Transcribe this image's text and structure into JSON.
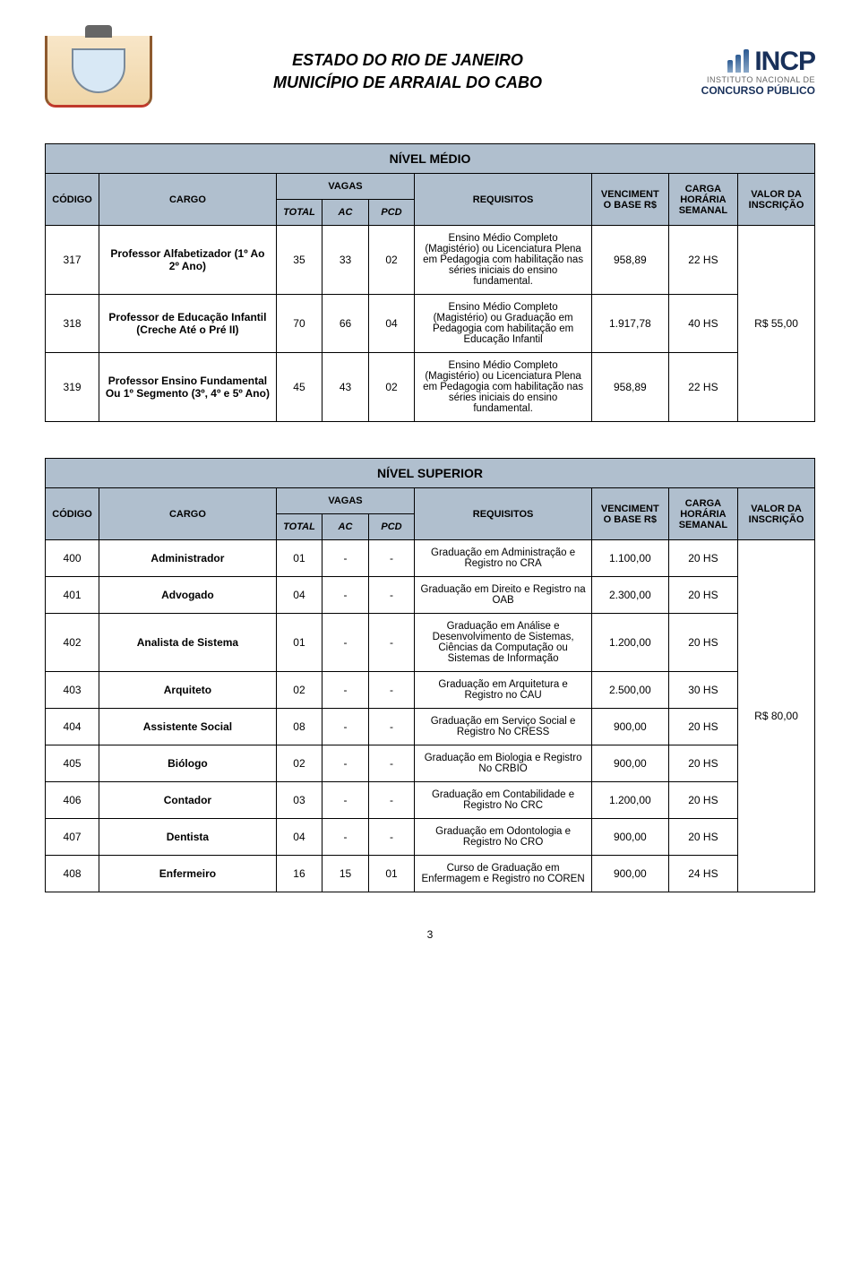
{
  "header": {
    "line1": "ESTADO DO RIO DE JANEIRO",
    "line2": "MUNICÍPIO DE ARRAIAL DO CABO",
    "logo_brand": "INCP",
    "logo_sub1": "INSTITUTO NACIONAL DE",
    "logo_sub2": "CONCURSO PÚBLICO"
  },
  "colors": {
    "header_bg": "#b0bfce",
    "border": "#000000",
    "text": "#000000",
    "logo_primary": "#18305a"
  },
  "col_labels": {
    "codigo": "CÓDIGO",
    "cargo": "CARGO",
    "vagas": "VAGAS",
    "total": "TOTAL",
    "ac": "AC",
    "pcd": "PCD",
    "requisitos": "REQUISITOS",
    "vencimento": "VENCIMENTO BASE R$",
    "carga": "CARGA HORÁRIA SEMANAL",
    "valor": "VALOR DA INSCRIÇÃO"
  },
  "table1": {
    "title": "NÍVEL MÉDIO",
    "valor_inscricao": "R$ 55,00",
    "rows": [
      {
        "codigo": "317",
        "cargo": "Professor Alfabetizador (1º Ao 2º Ano)",
        "total": "35",
        "ac": "33",
        "pcd": "02",
        "requisitos": "Ensino Médio Completo (Magistério) ou Licenciatura Plena em Pedagogia com habilitação nas séries iniciais do ensino fundamental.",
        "vencimento": "958,89",
        "carga": "22 HS"
      },
      {
        "codigo": "318",
        "cargo": "Professor de Educação Infantil (Creche Até o Pré II)",
        "total": "70",
        "ac": "66",
        "pcd": "04",
        "requisitos": "Ensino Médio Completo (Magistério) ou Graduação em Pedagogia com habilitação em Educação Infantil",
        "vencimento": "1.917,78",
        "carga": "40 HS"
      },
      {
        "codigo": "319",
        "cargo": "Professor Ensino Fundamental Ou 1º Segmento (3º, 4º e 5º Ano)",
        "total": "45",
        "ac": "43",
        "pcd": "02",
        "requisitos": "Ensino Médio Completo (Magistério) ou Licenciatura Plena em Pedagogia com habilitação nas séries iniciais do ensino fundamental.",
        "vencimento": "958,89",
        "carga": "22 HS"
      }
    ]
  },
  "table2": {
    "title": "NÍVEL SUPERIOR",
    "valor_inscricao": "R$ 80,00",
    "rows": [
      {
        "codigo": "400",
        "cargo": "Administrador",
        "total": "01",
        "ac": "-",
        "pcd": "-",
        "requisitos": "Graduação em Administração e Registro no CRA",
        "vencimento": "1.100,00",
        "carga": "20 HS"
      },
      {
        "codigo": "401",
        "cargo": "Advogado",
        "total": "04",
        "ac": "-",
        "pcd": "-",
        "requisitos": "Graduação em Direito e Registro na OAB",
        "vencimento": "2.300,00",
        "carga": "20 HS"
      },
      {
        "codigo": "402",
        "cargo": "Analista de Sistema",
        "total": "01",
        "ac": "-",
        "pcd": "-",
        "requisitos": "Graduação em Análise e Desenvolvimento de Sistemas, Ciências da Computação ou Sistemas de Informação",
        "vencimento": "1.200,00",
        "carga": "20 HS"
      },
      {
        "codigo": "403",
        "cargo": "Arquiteto",
        "total": "02",
        "ac": "-",
        "pcd": "-",
        "requisitos": "Graduação em Arquitetura e Registro no CAU",
        "vencimento": "2.500,00",
        "carga": "30 HS"
      },
      {
        "codigo": "404",
        "cargo": "Assistente Social",
        "total": "08",
        "ac": "-",
        "pcd": "-",
        "requisitos": "Graduação em Serviço Social e Registro No CRESS",
        "vencimento": "900,00",
        "carga": "20 HS"
      },
      {
        "codigo": "405",
        "cargo": "Biólogo",
        "total": "02",
        "ac": "-",
        "pcd": "-",
        "requisitos": "Graduação em Biologia e Registro No CRBIO",
        "vencimento": "900,00",
        "carga": "20 HS"
      },
      {
        "codigo": "406",
        "cargo": "Contador",
        "total": "03",
        "ac": "-",
        "pcd": "-",
        "requisitos": "Graduação em Contabilidade e Registro No CRC",
        "vencimento": "1.200,00",
        "carga": "20 HS"
      },
      {
        "codigo": "407",
        "cargo": "Dentista",
        "total": "04",
        "ac": "-",
        "pcd": "-",
        "requisitos": "Graduação em Odontologia e Registro No CRO",
        "vencimento": "900,00",
        "carga": "20 HS"
      },
      {
        "codigo": "408",
        "cargo": "Enfermeiro",
        "total": "16",
        "ac": "15",
        "pcd": "01",
        "requisitos": "Curso de Graduação em Enfermagem e Registro no COREN",
        "vencimento": "900,00",
        "carga": "24 HS"
      }
    ]
  },
  "page_number": "3"
}
